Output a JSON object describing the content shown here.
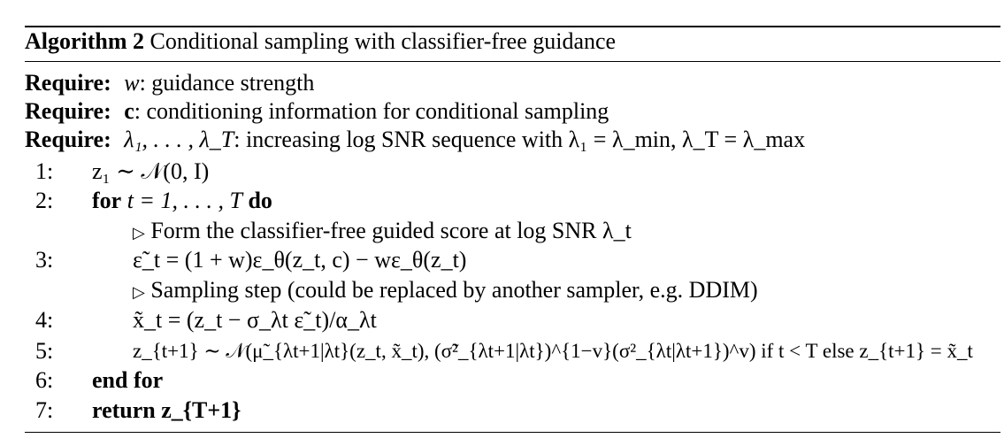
{
  "title": {
    "label": "Algorithm 2",
    "text": "Conditional sampling with classifier-free guidance"
  },
  "requires": [
    {
      "keyword": "Require:",
      "symbol": "w",
      "text": ": guidance strength"
    },
    {
      "keyword": "Require:",
      "symbol": "c",
      "text": ": conditioning information for conditional sampling"
    },
    {
      "keyword": "Require:",
      "symbol": "λ₁, . . . , λ_T",
      "text": ": increasing log SNR sequence with λ₁ = λ_min, λ_T = λ_max"
    }
  ],
  "steps": [
    {
      "num": "1:",
      "text": "z₁ ∼ 𝒩(0, I)"
    },
    {
      "num": "2:",
      "kw1": "for",
      "text": "t = 1, . . . , T",
      "kw2": "do"
    },
    {
      "num": "",
      "comment": "Form the classifier-free guided score at log SNR λ_t"
    },
    {
      "num": "3:",
      "text": "ε̃_t = (1 + w)ε_θ(z_t, c) − wε_θ(z_t)"
    },
    {
      "num": "",
      "comment": "Sampling step (could be replaced by another sampler, e.g. DDIM)"
    },
    {
      "num": "4:",
      "text": "x̃_t = (z_t − σ_λt ε̃_t)/α_λt"
    },
    {
      "num": "5:",
      "text": "z_{t+1} ∼ 𝒩(μ̃_{λt+1|λt}(z_t, x̃_t), (σ̃²_{λt+1|λt})^{1−v}(σ²_{λt|λt+1})^v) if t < T else z_{t+1} = x̃_t"
    },
    {
      "num": "6:",
      "kw1": "end for"
    },
    {
      "num": "7:",
      "kw1": "return",
      "text": "z_{T+1}"
    }
  ],
  "comment_marker": "▷"
}
